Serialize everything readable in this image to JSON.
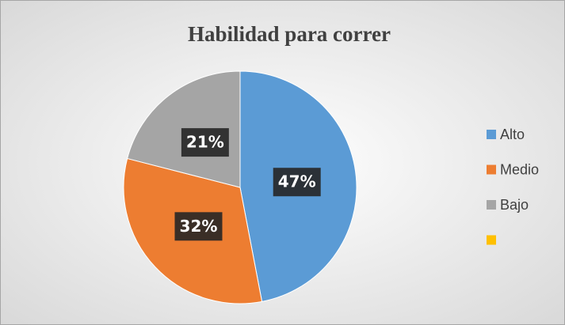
{
  "chart_data": {
    "type": "pie",
    "title": "Habilidad para correr",
    "categories": [
      "Alto",
      "Medio",
      "Bajo",
      null
    ],
    "values": [
      47,
      32,
      21,
      0
    ],
    "value_labels": [
      "47%",
      "32%",
      "21%",
      null
    ],
    "colors": [
      "#5b9bd5",
      "#ed7d31",
      "#a5a5a5",
      "#ffc000"
    ],
    "legend": "right"
  }
}
